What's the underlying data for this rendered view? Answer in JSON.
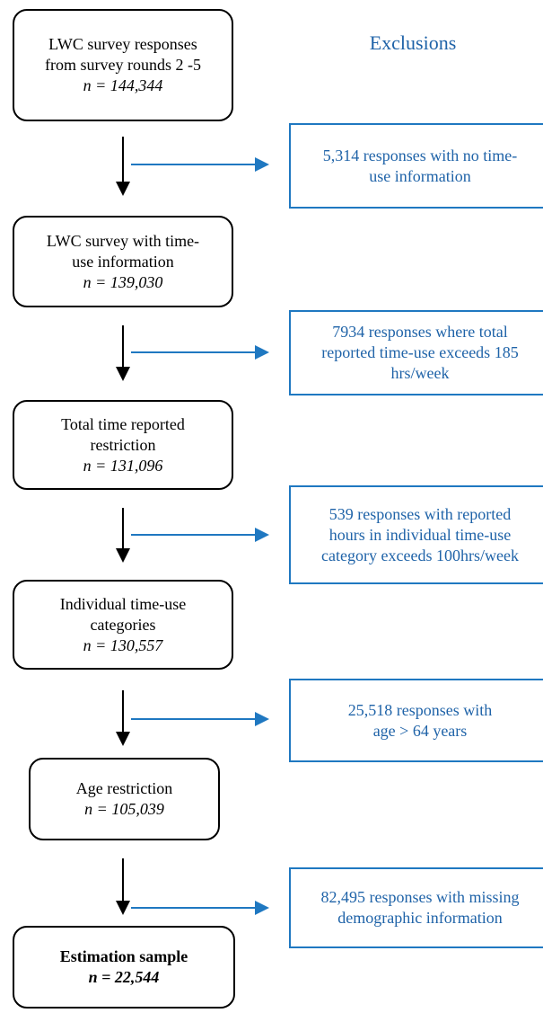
{
  "header": {
    "title": "Exclusions"
  },
  "nodes": [
    {
      "lines": [
        "LWC survey responses",
        "from survey rounds 2 -5"
      ],
      "count": "n = 144,344"
    },
    {
      "lines": [
        "LWC survey with time-",
        "use information"
      ],
      "count": "n = 139,030"
    },
    {
      "lines": [
        "Total time reported",
        "restriction"
      ],
      "count": "n = 131,096"
    },
    {
      "lines": [
        "Individual time-use",
        "categories"
      ],
      "count": "n = 130,557"
    },
    {
      "lines": [
        "Age restriction"
      ],
      "count": "n = 105,039"
    },
    {
      "lines": [
        "Estimation sample"
      ],
      "count": "n = 22,544"
    }
  ],
  "exclusions": [
    {
      "lines": [
        "5,314 responses with no time-",
        "use information"
      ]
    },
    {
      "lines": [
        "7934 responses where total",
        "reported time-use exceeds 185",
        "hrs/week"
      ]
    },
    {
      "lines": [
        "539 responses with reported",
        "hours in individual time-use",
        "category exceeds 100hrs/week"
      ]
    },
    {
      "lines": [
        "25,518 responses with",
        "age > 64 years"
      ]
    },
    {
      "lines": [
        "82,495 responses with missing",
        "demographic information"
      ]
    }
  ]
}
